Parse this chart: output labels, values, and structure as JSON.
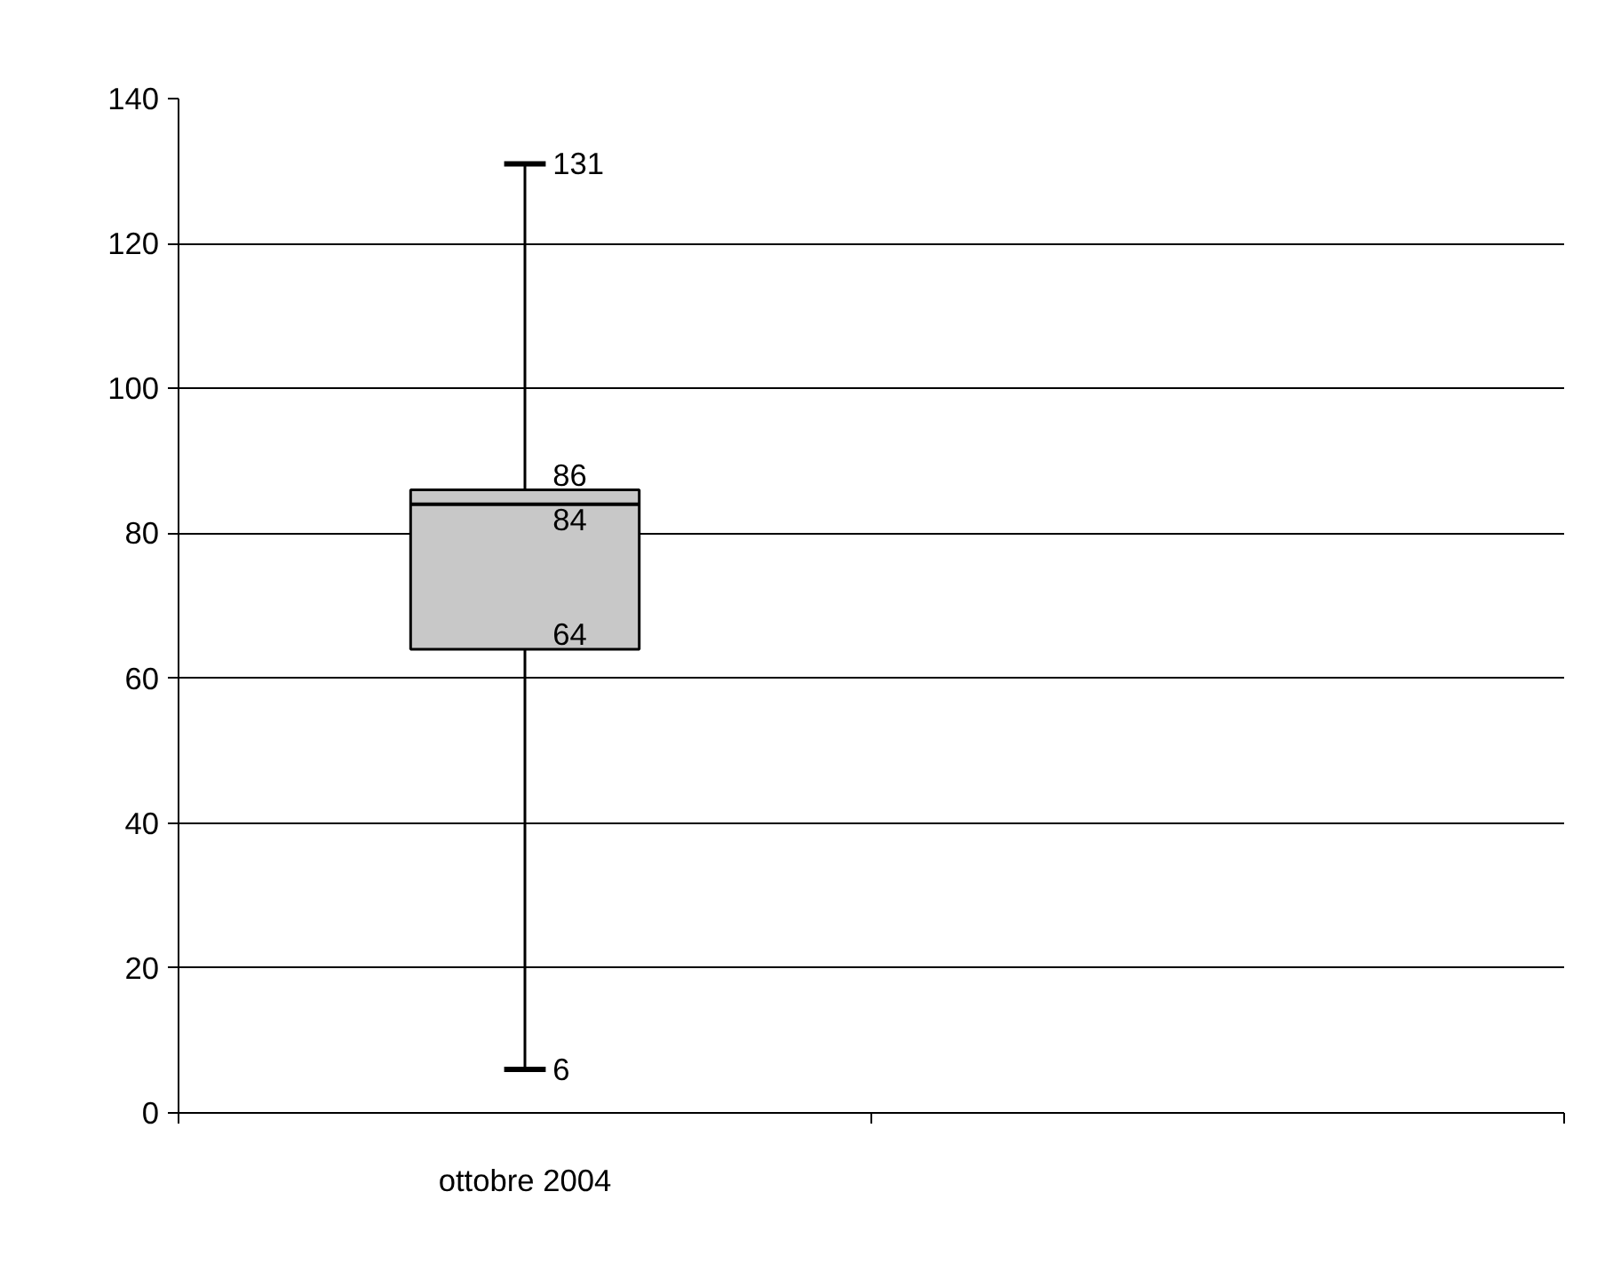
{
  "chart_data": {
    "type": "box",
    "categories": [
      "ottobre 2004",
      null
    ],
    "boxes": [
      {
        "low": 6,
        "q1": 64,
        "median": 84,
        "q3": 86,
        "high": 131
      },
      null
    ],
    "color": "#c8c8c8",
    "ylim": [
      0,
      140
    ],
    "yticks": [
      0,
      20,
      40,
      60,
      80,
      100,
      120,
      140
    ],
    "grid": "y",
    "annotations": [
      {
        "text": "131",
        "x": "ottobre 2004",
        "y": 131
      },
      {
        "text": "86",
        "x": "ottobre 2004",
        "y": 86
      },
      {
        "text": "84",
        "x": "ottobre 2004",
        "y": 84
      },
      {
        "text": "64",
        "x": "ottobre 2004",
        "y": 64
      },
      {
        "text": "6",
        "x": "ottobre 2004",
        "y": 6
      }
    ]
  }
}
